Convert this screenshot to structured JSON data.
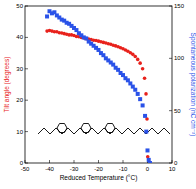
{
  "chart_data": {
    "type": "scatter",
    "x_label": "Reduced Temperature (°C)",
    "y_label": "Tilt angle (degrees)",
    "y2_label": "Spontaneous polarization (nC cm⁻²)",
    "xlim": [
      -50,
      10
    ],
    "xticks": [
      -50,
      -40,
      -30,
      -20,
      -10,
      0,
      10
    ],
    "ylim": [
      0,
      50
    ],
    "yticks": [
      0,
      10,
      20,
      30,
      40,
      50
    ],
    "y2lim": [
      0,
      150
    ],
    "y2ticks": [
      0,
      50,
      100,
      150
    ],
    "grid": false,
    "series": [
      {
        "name": "Tilt angle",
        "color": "#e8211b",
        "marker": "circle",
        "axis": "y",
        "x": [
          -41,
          -40,
          -39,
          -38,
          -37,
          -36,
          -35,
          -34,
          -33,
          -32,
          -31,
          -30,
          -29,
          -28,
          -27,
          -26,
          -25,
          -24,
          -23,
          -22,
          -21,
          -20,
          -19,
          -18,
          -17,
          -16,
          -15,
          -14,
          -13,
          -12,
          -11,
          -10,
          -9,
          -8,
          -7,
          -6,
          -5,
          -4,
          -3,
          -2,
          -1.2,
          -0.6,
          -0.2,
          0.1
        ],
        "values": [
          42,
          42.2,
          42,
          41.8,
          41.8,
          41.5,
          41.4,
          41.2,
          41,
          40.8,
          40.8,
          40.6,
          40.3,
          40.2,
          40,
          39.8,
          39.6,
          39.5,
          39.3,
          39.1,
          39,
          38.8,
          38.6,
          38.4,
          38.2,
          38,
          37.8,
          37.5,
          37.3,
          37,
          36.7,
          36.4,
          36,
          35.6,
          35.1,
          34.6,
          33.9,
          33,
          31.8,
          30,
          27,
          22,
          14,
          2
        ]
      },
      {
        "name": "Spontaneous polarization",
        "color": "#2a52e8",
        "marker": "square",
        "axis": "y2",
        "x": [
          -41,
          -40,
          -39,
          -38,
          -37,
          -36,
          -35,
          -34,
          -33,
          -32,
          -31,
          -30,
          -29,
          -28,
          -27,
          -26,
          -25,
          -24,
          -23,
          -22,
          -21,
          -20,
          -19,
          -18,
          -17,
          -16,
          -15,
          -14,
          -13,
          -12,
          -11,
          -10,
          -9,
          -8,
          -7,
          -6,
          -5,
          -4,
          -3,
          -2,
          -1,
          -0.5,
          0,
          0.5,
          1
        ],
        "values": [
          140,
          145,
          143,
          144,
          141,
          139,
          137,
          136,
          134,
          133,
          131,
          129,
          127,
          124,
          122,
          120,
          119,
          116,
          114,
          112,
          110,
          108,
          105,
          103,
          100,
          98,
          96,
          94,
          91,
          89,
          86,
          84,
          81,
          79,
          76,
          73,
          70,
          66,
          61,
          55,
          45,
          30,
          12,
          3,
          0
        ]
      }
    ]
  }
}
